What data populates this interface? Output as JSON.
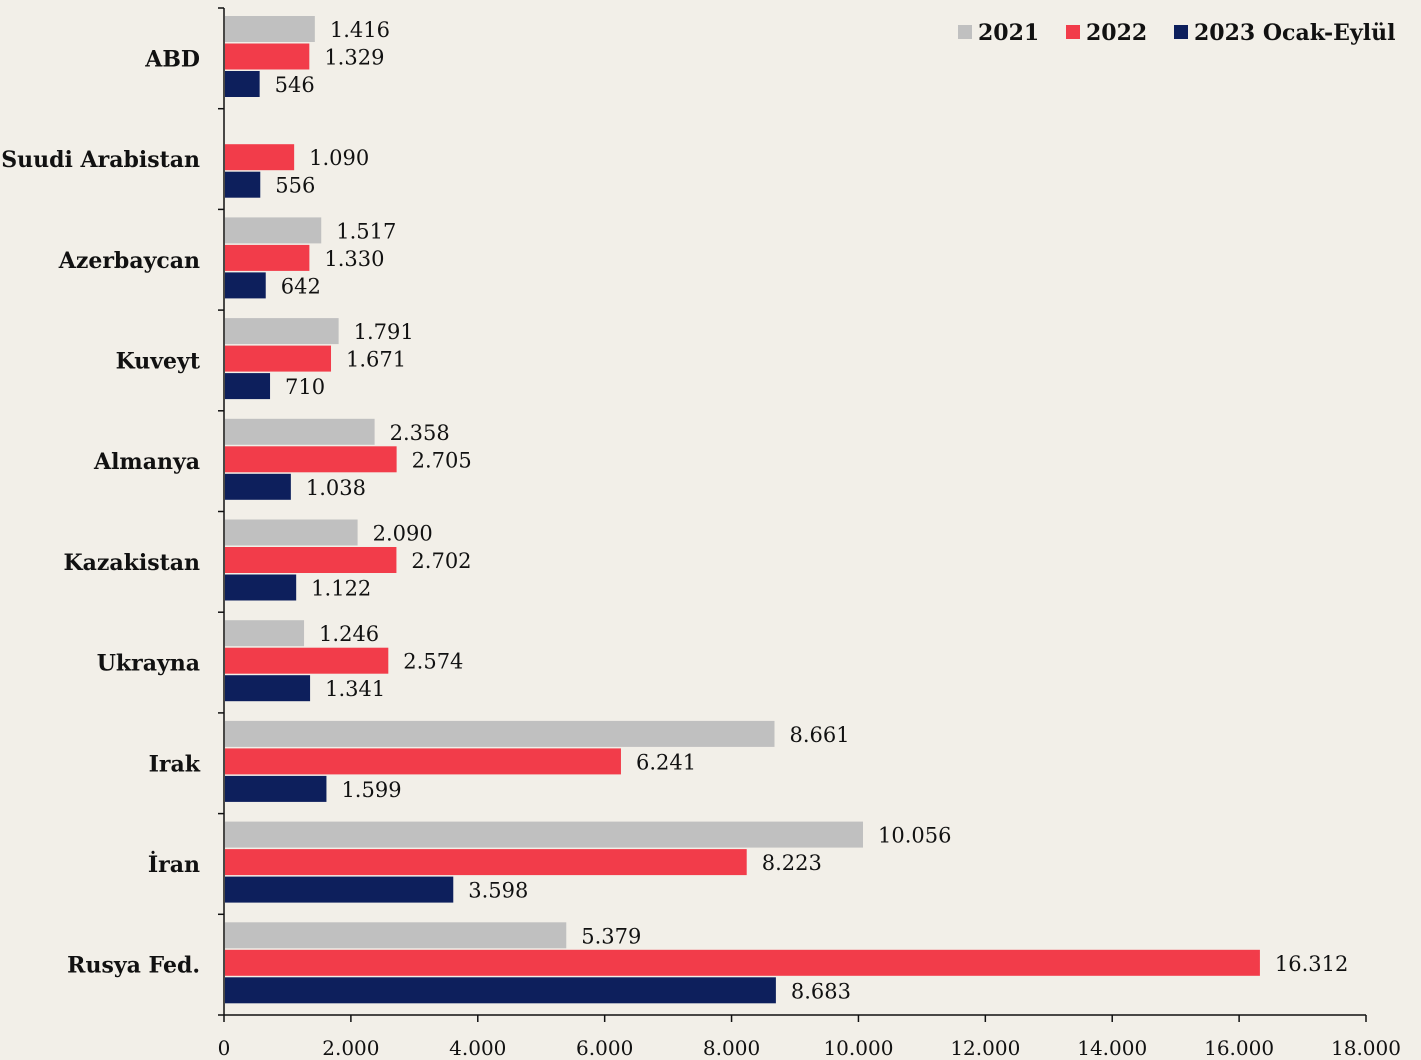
{
  "chart_data": {
    "type": "bar",
    "orientation": "horizontal",
    "categories": [
      "ABD",
      "Suudi Arabistan",
      "Azerbaycan",
      "Kuveyt",
      "Almanya",
      "Kazakistan",
      "Ukrayna",
      "Irak",
      "İran",
      "Rusya Fed."
    ],
    "series": [
      {
        "name": "2021",
        "color": "#c0c0c0",
        "values": [
          1416,
          null,
          1517,
          1791,
          2358,
          2090,
          1246,
          8661,
          10056,
          5379
        ],
        "labels": [
          "1.416",
          "",
          "1.517",
          "1.791",
          "2.358",
          "2.090",
          "1.246",
          "8.661",
          "10.056",
          "5.379"
        ]
      },
      {
        "name": "2022",
        "color": "#f23c4a",
        "values": [
          1329,
          1090,
          1330,
          1671,
          2705,
          2702,
          2574,
          6241,
          8223,
          16312
        ],
        "labels": [
          "1.329",
          "1.090",
          "1.330",
          "1.671",
          "2.705",
          "2.702",
          "2.574",
          "6.241",
          "8.223",
          "16.312"
        ]
      },
      {
        "name": "2023 Ocak-Eylül",
        "color": "#0d1f5c",
        "values": [
          546,
          556,
          642,
          710,
          1038,
          1122,
          1341,
          1599,
          3598,
          8683
        ],
        "labels": [
          "546",
          "556",
          "642",
          "710",
          "1.038",
          "1.122",
          "1.341",
          "1.599",
          "3.598",
          "8.683"
        ]
      }
    ],
    "xlim": [
      0,
      18000
    ],
    "xticks": [
      0,
      2000,
      4000,
      6000,
      8000,
      10000,
      12000,
      14000,
      16000,
      18000
    ],
    "xtick_labels": [
      "0",
      "2.000",
      "4.000",
      "6.000",
      "8.000",
      "10.000",
      "12.000",
      "14.000",
      "16.000",
      "18.000"
    ],
    "grid": false,
    "legend_position": "top-right",
    "title": "",
    "xlabel": "",
    "ylabel": ""
  }
}
